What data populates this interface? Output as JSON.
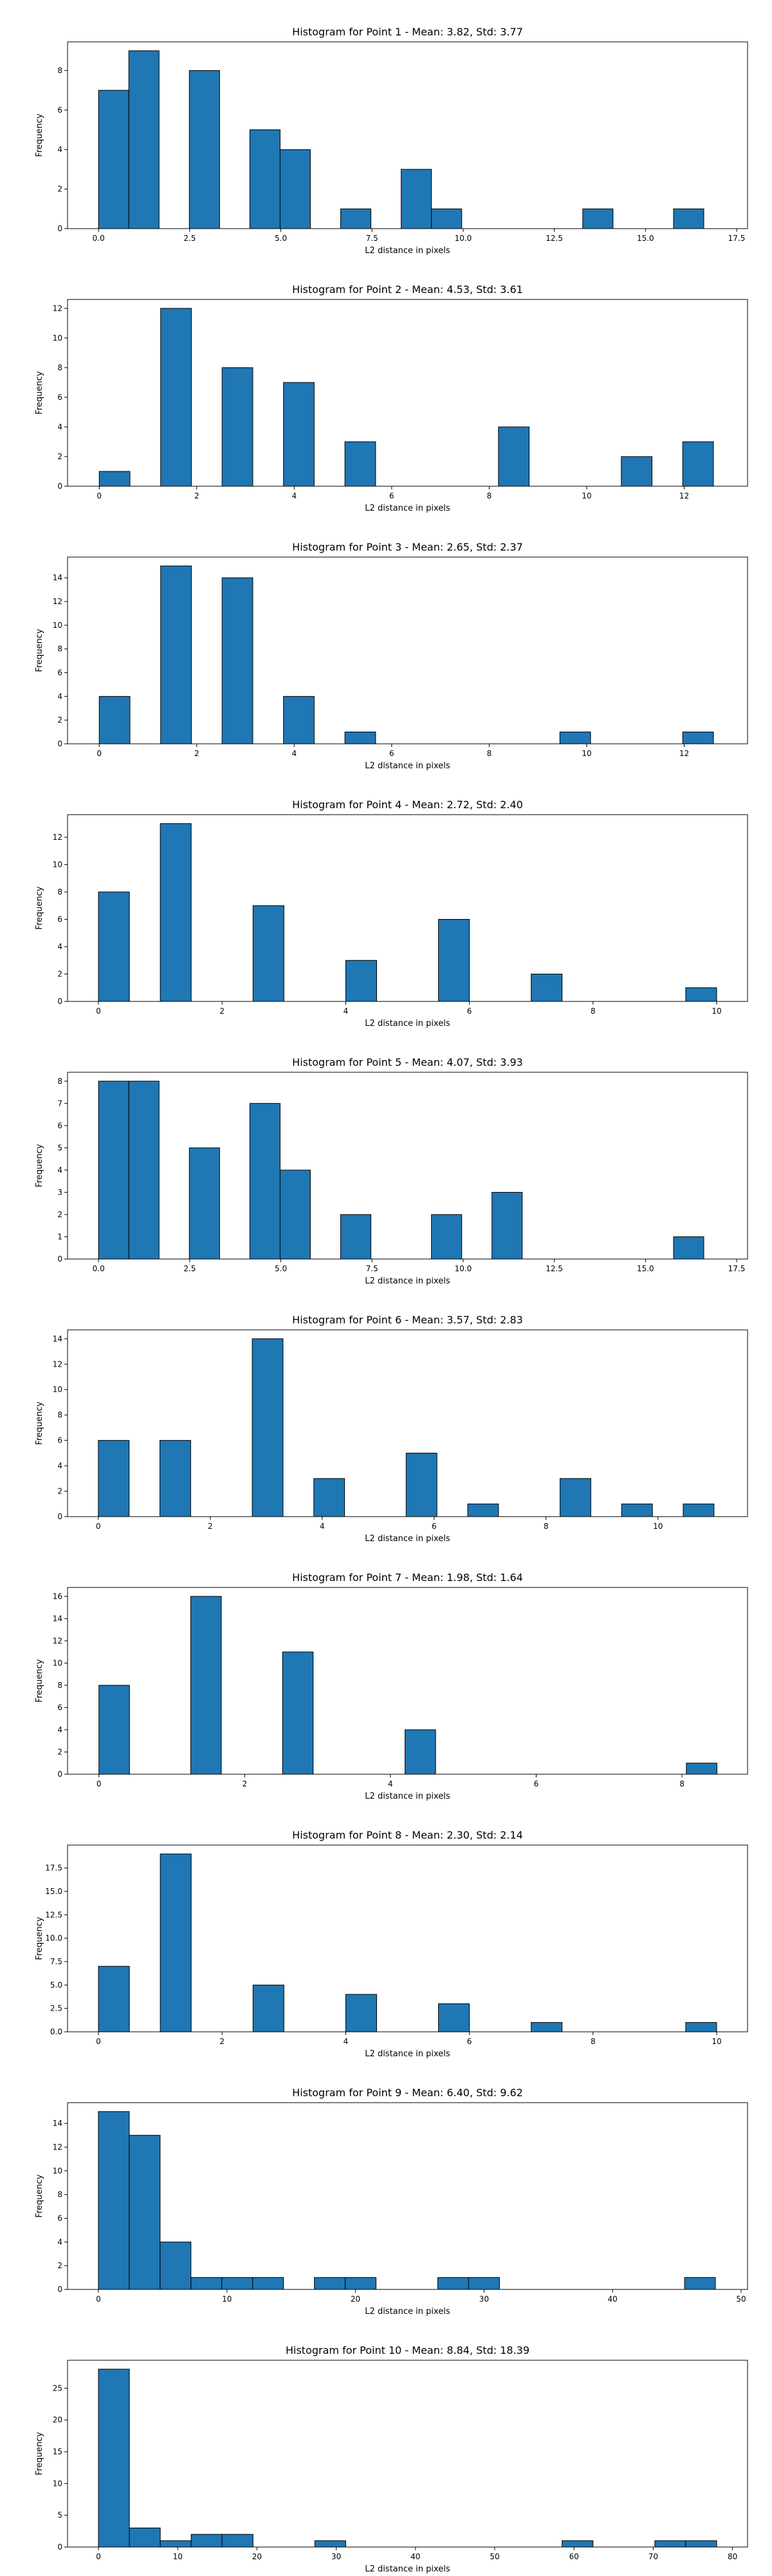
{
  "chart_data": [
    {
      "type": "bar",
      "title": "Histogram for Point 1 - Mean: 3.82, Std: 3.77",
      "xlabel": "L2 distance in pixels",
      "ylabel": "Frequency",
      "xlim": [
        -0.85,
        17.8
      ],
      "ylim": [
        0,
        9.45
      ],
      "xticks": [
        0,
        2.5,
        5,
        7.5,
        10,
        12.5,
        15,
        17.5
      ],
      "xtick_labels": [
        "0.0",
        "2.5",
        "5.0",
        "7.5",
        "10.0",
        "12.5",
        "15.0",
        "17.5"
      ],
      "yticks": [
        0,
        2,
        4,
        6,
        8
      ],
      "ytick_labels": [
        "0",
        "2",
        "4",
        "6",
        "8"
      ],
      "bins": [
        {
          "x0": 0.0,
          "x1": 0.83,
          "count": 7
        },
        {
          "x0": 0.83,
          "x1": 1.66,
          "count": 9
        },
        {
          "x0": 2.49,
          "x1": 3.32,
          "count": 8
        },
        {
          "x0": 4.15,
          "x1": 4.98,
          "count": 5
        },
        {
          "x0": 4.98,
          "x1": 5.81,
          "count": 4
        },
        {
          "x0": 6.64,
          "x1": 7.47,
          "count": 1
        },
        {
          "x0": 8.3,
          "x1": 9.13,
          "count": 3
        },
        {
          "x0": 9.13,
          "x1": 9.96,
          "count": 1
        },
        {
          "x0": 13.28,
          "x1": 14.11,
          "count": 1
        },
        {
          "x0": 15.77,
          "x1": 16.6,
          "count": 1
        }
      ]
    },
    {
      "type": "bar",
      "title": "Histogram for Point 2 - Mean: 4.53, Std: 3.61",
      "xlabel": "L2 distance in pixels",
      "ylabel": "Frequency",
      "xlim": [
        -0.65,
        13.3
      ],
      "ylim": [
        0,
        12.6
      ],
      "xticks": [
        0,
        2,
        4,
        6,
        8,
        10,
        12
      ],
      "xtick_labels": [
        "0",
        "2",
        "4",
        "6",
        "8",
        "10",
        "12"
      ],
      "yticks": [
        0,
        2,
        4,
        6,
        8,
        10,
        12
      ],
      "ytick_labels": [
        "0",
        "2",
        "4",
        "6",
        "8",
        "10",
        "12"
      ],
      "bins": [
        {
          "x0": 0.0,
          "x1": 0.63,
          "count": 1
        },
        {
          "x0": 1.26,
          "x1": 1.89,
          "count": 12
        },
        {
          "x0": 2.52,
          "x1": 3.15,
          "count": 8
        },
        {
          "x0": 3.78,
          "x1": 4.41,
          "count": 7
        },
        {
          "x0": 5.04,
          "x1": 5.67,
          "count": 3
        },
        {
          "x0": 8.19,
          "x1": 8.82,
          "count": 4
        },
        {
          "x0": 10.71,
          "x1": 11.34,
          "count": 2
        },
        {
          "x0": 11.97,
          "x1": 12.6,
          "count": 3
        }
      ]
    },
    {
      "type": "bar",
      "title": "Histogram for Point 3 - Mean: 2.65, Std: 2.37",
      "xlabel": "L2 distance in pixels",
      "ylabel": "Frequency",
      "xlim": [
        -0.65,
        13.3
      ],
      "ylim": [
        0,
        15.75
      ],
      "xticks": [
        0,
        2,
        4,
        6,
        8,
        10,
        12
      ],
      "xtick_labels": [
        "0",
        "2",
        "4",
        "6",
        "8",
        "10",
        "12"
      ],
      "yticks": [
        0,
        2,
        4,
        6,
        8,
        10,
        12,
        14
      ],
      "ytick_labels": [
        "0",
        "2",
        "4",
        "6",
        "8",
        "10",
        "12",
        "14"
      ],
      "bins": [
        {
          "x0": 0.0,
          "x1": 0.63,
          "count": 4
        },
        {
          "x0": 1.26,
          "x1": 1.89,
          "count": 15
        },
        {
          "x0": 2.52,
          "x1": 3.15,
          "count": 14
        },
        {
          "x0": 3.78,
          "x1": 4.41,
          "count": 4
        },
        {
          "x0": 5.04,
          "x1": 5.67,
          "count": 1
        },
        {
          "x0": 9.45,
          "x1": 10.08,
          "count": 1
        },
        {
          "x0": 11.97,
          "x1": 12.6,
          "count": 1
        }
      ]
    },
    {
      "type": "bar",
      "title": "Histogram for Point 4 - Mean: 2.72, Std: 2.40",
      "xlabel": "L2 distance in pixels",
      "ylabel": "Frequency",
      "xlim": [
        -0.5,
        10.5
      ],
      "ylim": [
        0,
        13.65
      ],
      "xticks": [
        0,
        2,
        4,
        6,
        8,
        10
      ],
      "xtick_labels": [
        "0",
        "2",
        "4",
        "6",
        "8",
        "10"
      ],
      "yticks": [
        0,
        2,
        4,
        6,
        8,
        10,
        12
      ],
      "ytick_labels": [
        "0",
        "2",
        "4",
        "6",
        "8",
        "10",
        "12"
      ],
      "bins": [
        {
          "x0": 0.0,
          "x1": 0.5,
          "count": 8
        },
        {
          "x0": 1.0,
          "x1": 1.5,
          "count": 13
        },
        {
          "x0": 2.5,
          "x1": 3.0,
          "count": 7
        },
        {
          "x0": 4.0,
          "x1": 4.5,
          "count": 3
        },
        {
          "x0": 5.5,
          "x1": 6.0,
          "count": 6
        },
        {
          "x0": 7.0,
          "x1": 7.5,
          "count": 2
        },
        {
          "x0": 9.5,
          "x1": 10.0,
          "count": 1
        }
      ]
    },
    {
      "type": "bar",
      "title": "Histogram for Point 5 - Mean: 4.07, Std: 3.93",
      "xlabel": "L2 distance in pixels",
      "ylabel": "Frequency",
      "xlim": [
        -0.85,
        17.8
      ],
      "ylim": [
        0,
        8.4
      ],
      "xticks": [
        0,
        2.5,
        5,
        7.5,
        10,
        12.5,
        15,
        17.5
      ],
      "xtick_labels": [
        "0.0",
        "2.5",
        "5.0",
        "7.5",
        "10.0",
        "12.5",
        "15.0",
        "17.5"
      ],
      "yticks": [
        0,
        1,
        2,
        3,
        4,
        5,
        6,
        7,
        8
      ],
      "ytick_labels": [
        "0",
        "1",
        "2",
        "3",
        "4",
        "5",
        "6",
        "7",
        "8"
      ],
      "bins": [
        {
          "x0": 0.0,
          "x1": 0.83,
          "count": 8
        },
        {
          "x0": 0.83,
          "x1": 1.66,
          "count": 8
        },
        {
          "x0": 2.49,
          "x1": 3.32,
          "count": 5
        },
        {
          "x0": 4.15,
          "x1": 4.98,
          "count": 7
        },
        {
          "x0": 4.98,
          "x1": 5.81,
          "count": 4
        },
        {
          "x0": 6.64,
          "x1": 7.47,
          "count": 2
        },
        {
          "x0": 9.13,
          "x1": 9.96,
          "count": 2
        },
        {
          "x0": 10.79,
          "x1": 11.62,
          "count": 3
        },
        {
          "x0": 15.77,
          "x1": 16.6,
          "count": 1
        }
      ]
    },
    {
      "type": "bar",
      "title": "Histogram for Point 6 - Mean: 3.57, Std: 2.83",
      "xlabel": "L2 distance in pixels",
      "ylabel": "Frequency",
      "xlim": [
        -0.55,
        11.6
      ],
      "ylim": [
        0,
        14.7
      ],
      "xticks": [
        0,
        2,
        4,
        6,
        8,
        10
      ],
      "xtick_labels": [
        "0",
        "2",
        "4",
        "6",
        "8",
        "10"
      ],
      "yticks": [
        0,
        2,
        4,
        6,
        8,
        10,
        12,
        14
      ],
      "ytick_labels": [
        "0",
        "2",
        "4",
        "6",
        "8",
        "10",
        "12",
        "14"
      ],
      "bins": [
        {
          "x0": 0.0,
          "x1": 0.55,
          "count": 6
        },
        {
          "x0": 1.1,
          "x1": 1.65,
          "count": 6
        },
        {
          "x0": 2.75,
          "x1": 3.3,
          "count": 14
        },
        {
          "x0": 3.85,
          "x1": 4.4,
          "count": 3
        },
        {
          "x0": 5.5,
          "x1": 6.05,
          "count": 5
        },
        {
          "x0": 6.6,
          "x1": 7.15,
          "count": 1
        },
        {
          "x0": 8.25,
          "x1": 8.8,
          "count": 3
        },
        {
          "x0": 9.35,
          "x1": 9.9,
          "count": 1
        },
        {
          "x0": 10.45,
          "x1": 11.0,
          "count": 1
        }
      ]
    },
    {
      "type": "bar",
      "title": "Histogram for Point 7 - Mean: 1.98, Std: 1.64",
      "xlabel": "L2 distance in pixels",
      "ylabel": "Frequency",
      "xlim": [
        -0.43,
        8.9
      ],
      "ylim": [
        0,
        16.8
      ],
      "xticks": [
        0,
        2,
        4,
        6,
        8
      ],
      "xtick_labels": [
        "0",
        "2",
        "4",
        "6",
        "8"
      ],
      "yticks": [
        0,
        2,
        4,
        6,
        8,
        10,
        12,
        14,
        16
      ],
      "ytick_labels": [
        "0",
        "2",
        "4",
        "6",
        "8",
        "10",
        "12",
        "14",
        "16"
      ],
      "bins": [
        {
          "x0": 0.0,
          "x1": 0.42,
          "count": 8
        },
        {
          "x0": 1.26,
          "x1": 1.68,
          "count": 16
        },
        {
          "x0": 2.52,
          "x1": 2.94,
          "count": 11
        },
        {
          "x0": 4.2,
          "x1": 4.62,
          "count": 4
        },
        {
          "x0": 8.06,
          "x1": 8.48,
          "count": 1
        }
      ]
    },
    {
      "type": "bar",
      "title": "Histogram for Point 8 - Mean: 2.30, Std: 2.14",
      "xlabel": "L2 distance in pixels",
      "ylabel": "Frequency",
      "xlim": [
        -0.5,
        10.5
      ],
      "ylim": [
        0,
        19.95
      ],
      "xticks": [
        0,
        2,
        4,
        6,
        8,
        10
      ],
      "xtick_labels": [
        "0",
        "2",
        "4",
        "6",
        "8",
        "10"
      ],
      "yticks": [
        0,
        2.5,
        5,
        7.5,
        10,
        12.5,
        15,
        17.5
      ],
      "ytick_labels": [
        "0.0",
        "2.5",
        "5.0",
        "7.5",
        "10.0",
        "12.5",
        "15.0",
        "17.5"
      ],
      "bins": [
        {
          "x0": 0.0,
          "x1": 0.5,
          "count": 7
        },
        {
          "x0": 1.0,
          "x1": 1.5,
          "count": 19
        },
        {
          "x0": 2.5,
          "x1": 3.0,
          "count": 5
        },
        {
          "x0": 4.0,
          "x1": 4.5,
          "count": 4
        },
        {
          "x0": 5.5,
          "x1": 6.0,
          "count": 3
        },
        {
          "x0": 7.0,
          "x1": 7.5,
          "count": 1
        },
        {
          "x0": 9.5,
          "x1": 10.0,
          "count": 1
        }
      ]
    },
    {
      "type": "bar",
      "title": "Histogram for Point 9 - Mean: 6.40, Std: 9.62",
      "xlabel": "L2 distance in pixels",
      "ylabel": "Frequency",
      "xlim": [
        -2.4,
        50.5
      ],
      "ylim": [
        0,
        15.75
      ],
      "xticks": [
        0,
        10,
        20,
        30,
        40,
        50
      ],
      "xtick_labels": [
        "0",
        "10",
        "20",
        "30",
        "40",
        "50"
      ],
      "yticks": [
        0,
        2,
        4,
        6,
        8,
        10,
        12,
        14
      ],
      "ytick_labels": [
        "0",
        "2",
        "4",
        "6",
        "8",
        "10",
        "12",
        "14"
      ],
      "bins": [
        {
          "x0": 0.0,
          "x1": 2.4,
          "count": 15
        },
        {
          "x0": 2.4,
          "x1": 4.8,
          "count": 13
        },
        {
          "x0": 4.8,
          "x1": 7.2,
          "count": 4
        },
        {
          "x0": 7.2,
          "x1": 9.6,
          "count": 1
        },
        {
          "x0": 9.6,
          "x1": 12.0,
          "count": 1
        },
        {
          "x0": 12.0,
          "x1": 14.4,
          "count": 1
        },
        {
          "x0": 16.8,
          "x1": 19.2,
          "count": 1
        },
        {
          "x0": 19.2,
          "x1": 21.6,
          "count": 1
        },
        {
          "x0": 26.4,
          "x1": 28.8,
          "count": 1
        },
        {
          "x0": 28.8,
          "x1": 31.2,
          "count": 1
        },
        {
          "x0": 45.6,
          "x1": 48.0,
          "count": 1
        }
      ]
    },
    {
      "type": "bar",
      "title": "Histogram for Point 10 - Mean: 8.84, Std: 18.39",
      "xlabel": "L2 distance in pixels",
      "ylabel": "Frequency",
      "xlim": [
        -3.9,
        81.9
      ],
      "ylim": [
        0,
        29.4
      ],
      "xticks": [
        0,
        10,
        20,
        30,
        40,
        50,
        60,
        70,
        80
      ],
      "xtick_labels": [
        "0",
        "10",
        "20",
        "30",
        "40",
        "50",
        "60",
        "70",
        "80"
      ],
      "yticks": [
        0,
        5,
        10,
        15,
        20,
        25
      ],
      "ytick_labels": [
        "0",
        "5",
        "10",
        "15",
        "20",
        "25"
      ],
      "bins": [
        {
          "x0": 0.0,
          "x1": 3.9,
          "count": 28
        },
        {
          "x0": 3.9,
          "x1": 7.8,
          "count": 3
        },
        {
          "x0": 7.8,
          "x1": 11.7,
          "count": 1
        },
        {
          "x0": 11.7,
          "x1": 15.6,
          "count": 2
        },
        {
          "x0": 15.6,
          "x1": 19.5,
          "count": 2
        },
        {
          "x0": 27.3,
          "x1": 31.2,
          "count": 1
        },
        {
          "x0": 58.5,
          "x1": 62.4,
          "count": 1
        },
        {
          "x0": 70.2,
          "x1": 74.1,
          "count": 1
        },
        {
          "x0": 74.1,
          "x1": 78.0,
          "count": 1
        }
      ]
    }
  ]
}
